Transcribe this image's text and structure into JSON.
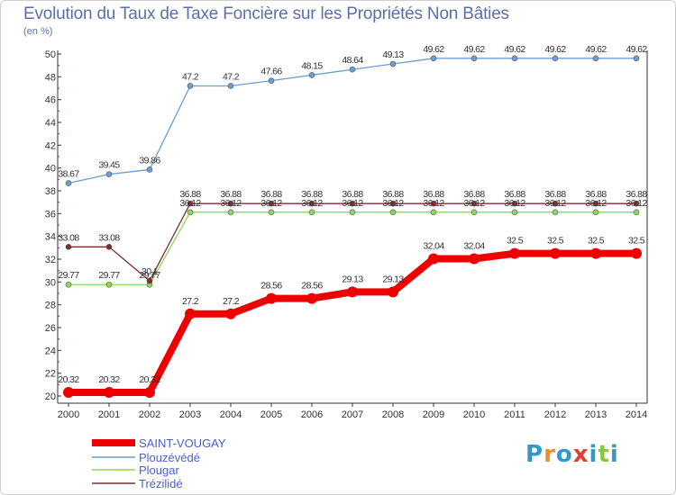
{
  "chart_data": {
    "type": "line",
    "title": "Evolution du Taux de Taxe Foncière sur les Propriétés Non Bâties",
    "unit_label": "(en %)",
    "xlabel": "",
    "ylabel": "(en %)",
    "categories": [
      "2000",
      "2001",
      "2002",
      "2003",
      "2004",
      "2005",
      "2006",
      "2007",
      "2008",
      "2009",
      "2010",
      "2011",
      "2012",
      "2013",
      "2014"
    ],
    "ylim": [
      20,
      50
    ],
    "yticks": [
      20,
      22,
      24,
      26,
      28,
      30,
      32,
      34,
      36,
      38,
      40,
      42,
      44,
      46,
      48,
      50
    ],
    "series": [
      {
        "name": "SAINT-VOUGAY",
        "color": "#ee0000",
        "values": [
          20.32,
          20.32,
          20.32,
          27.2,
          27.2,
          28.56,
          28.56,
          29.13,
          29.13,
          32.04,
          32.04,
          32.5,
          32.5,
          32.5,
          32.5
        ],
        "labels": [
          "20.32",
          "20.32",
          "20.32",
          "27.2",
          "27.2",
          "28.56",
          "28.56",
          "29.13",
          "29.13",
          "32.04",
          "32.04",
          "32.5",
          "32.5",
          "32.5",
          "32.5"
        ]
      },
      {
        "name": "Plouzévédé",
        "color": "#6a9fd4",
        "values": [
          38.67,
          39.45,
          39.86,
          47.2,
          47.2,
          47.66,
          48.15,
          48.64,
          49.13,
          49.62,
          49.62,
          49.62,
          49.62,
          49.62,
          49.62
        ],
        "labels": [
          "38.67",
          "39.45",
          "39.86",
          "47.2",
          "47.2",
          "47.66",
          "48.15",
          "48.64",
          "49.13",
          "49.62",
          "49.62",
          "49.62",
          "49.62",
          "49.62",
          "49.62"
        ]
      },
      {
        "name": "Plougar",
        "color": "#8ed65a",
        "values": [
          29.77,
          29.77,
          29.77,
          36.12,
          36.12,
          36.12,
          36.12,
          36.12,
          36.12,
          36.12,
          36.12,
          36.12,
          36.12,
          36.12,
          36.12
        ],
        "labels": [
          "29.77",
          "29.77",
          "29.77",
          "36.12",
          "36.12",
          "36.12",
          "36.12",
          "36.12",
          "36.12",
          "36.12",
          "36.12",
          "36.12",
          "36.12",
          "36.12",
          "36.12"
        ]
      },
      {
        "name": "Trézilidé",
        "color": "#7a3030",
        "values": [
          33.08,
          33.08,
          30.1,
          36.88,
          36.88,
          36.88,
          36.88,
          36.88,
          36.88,
          36.88,
          36.88,
          36.88,
          36.88,
          36.88,
          36.88
        ],
        "labels": [
          "33.08",
          "33.08",
          "30.1",
          "36.88",
          "36.88",
          "36.88",
          "36.88",
          "36.88",
          "36.88",
          "36.88",
          "36.88",
          "36.88",
          "36.88",
          "36.88",
          "36.88"
        ]
      }
    ],
    "grid": false,
    "legend_position": "bottom-left"
  },
  "logo": {
    "text": "Proxiti",
    "colors": [
      "#3399cc",
      "#f28c28",
      "#3399cc",
      "#e63b2e",
      "#3399cc",
      "#8cc63f",
      "#3399cc"
    ]
  }
}
